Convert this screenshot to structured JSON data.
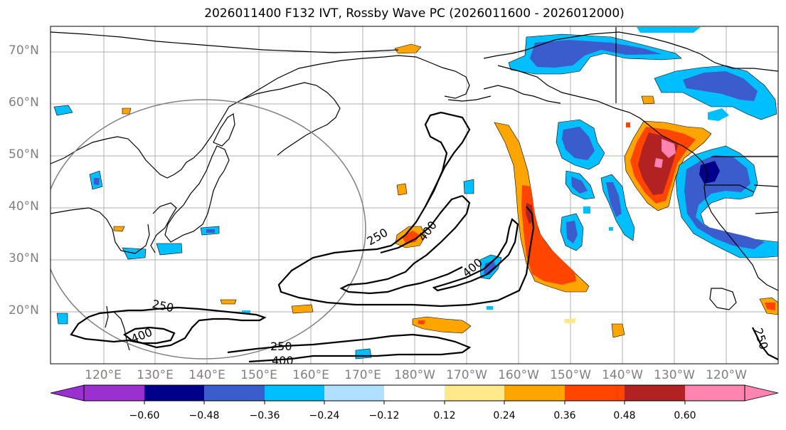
{
  "title": "2026011400 F132 IVT, Rossby Wave PC (2026011600 - 2026012000)",
  "lat_labels": [
    "70°N",
    "60°N",
    "50°N",
    "40°N",
    "30°N",
    "20°N"
  ],
  "lon_labels": [
    "120°E",
    "130°E",
    "140°E",
    "150°E",
    "160°E",
    "170°E",
    "180°W",
    "170°W",
    "160°W",
    "150°W",
    "140°W",
    "130°W",
    "120°W"
  ],
  "contour_labels": [
    "250",
    "400",
    "250",
    "400",
    "250",
    "400",
    "400",
    "250"
  ],
  "colorbar": {
    "ticks": [
      "−0.60",
      "−0.48",
      "−0.36",
      "−0.24",
      "−0.12",
      "0.12",
      "0.24",
      "0.36",
      "0.48",
      "0.60"
    ],
    "colors": [
      "#9b30d0",
      "#00008b",
      "#3a5ccc",
      "#00bfff",
      "#b0e0ff",
      "#ffffff",
      "#ffe98a",
      "#ffa500",
      "#ff4500",
      "#b22222",
      "#ff85b0",
      "#ff85b0"
    ]
  }
}
